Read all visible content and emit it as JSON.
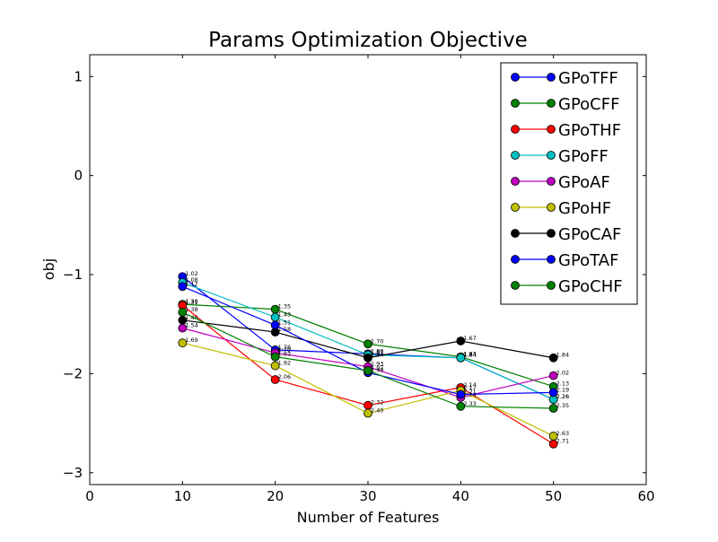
{
  "chart_data": {
    "type": "line",
    "title": "Params Optimization Objective",
    "xlabel": "Number of Features",
    "ylabel": "obj",
    "xlim": [
      0,
      60
    ],
    "ylim": [
      -3.12,
      1.22
    ],
    "xticks": [
      0,
      10,
      20,
      30,
      40,
      50,
      60
    ],
    "yticks": [
      1,
      0,
      -1,
      -2,
      -3
    ],
    "ytick_labels": [
      "1",
      "0",
      "−1",
      "−2",
      "−3"
    ],
    "grid": false,
    "legend_position": "top-right",
    "x": [
      10,
      20,
      30,
      40,
      50
    ],
    "series": [
      {
        "name": "GPoTFF",
        "color": "#0000ff",
        "values": [
          -1.02,
          -1.76,
          -1.8,
          -1.84,
          -2.26
        ],
        "labels": [
          "1.02",
          "1.76",
          "1.80",
          "1.84",
          "2.26"
        ]
      },
      {
        "name": "GPoCFF",
        "color": "#008000",
        "values": [
          -1.3,
          -1.35,
          -1.7,
          -1.83,
          -2.13
        ],
        "labels": [
          "1.30",
          "1.35",
          "1.70",
          "1.83",
          "2.13"
        ]
      },
      {
        "name": "GPoTHF",
        "color": "#ff0000",
        "values": [
          -1.31,
          -2.06,
          -2.32,
          -2.14,
          -2.71
        ],
        "labels": [
          "1.31",
          "2.06",
          "2.32",
          "2.14",
          "2.71"
        ]
      },
      {
        "name": "GPoFF",
        "color": "#00bfbf",
        "values": [
          -1.08,
          -1.43,
          -1.81,
          -1.84,
          -2.26
        ],
        "labels": [
          "1.08",
          "1.43",
          "1.81",
          "1.84",
          "2.26"
        ]
      },
      {
        "name": "GPoAF",
        "color": "#bf00bf",
        "values": [
          -1.54,
          -1.79,
          -1.93,
          -2.24,
          -2.02
        ],
        "labels": [
          "1.54",
          "1.79",
          "1.93",
          "2.24",
          "2.02"
        ]
      },
      {
        "name": "GPoHF",
        "color": "#bfbf00",
        "values": [
          -1.69,
          -1.92,
          -2.4,
          -2.17,
          -2.63
        ],
        "labels": [
          "1.69",
          "1.92",
          "2.40",
          "2.17",
          "2.63"
        ]
      },
      {
        "name": "GPoCAF",
        "color": "#000000",
        "values": [
          -1.46,
          -1.58,
          -1.84,
          -1.67,
          -1.84
        ],
        "labels": [
          "1.46",
          "1.58",
          "1.84",
          "1.67",
          "1.84"
        ]
      },
      {
        "name": "GPoTAF",
        "color": "#0000ff",
        "values": [
          -1.12,
          -1.51,
          -1.99,
          -2.21,
          -2.19
        ],
        "labels": [
          "1.12",
          "1.51",
          "1.99",
          "2.21",
          "2.19"
        ]
      },
      {
        "name": "GPoCHF",
        "color": "#008000",
        "values": [
          -1.38,
          -1.83,
          -1.97,
          -2.33,
          -2.35
        ],
        "labels": [
          "1.38",
          "1.83",
          "1.97",
          "2.33",
          "2.35"
        ]
      }
    ]
  }
}
